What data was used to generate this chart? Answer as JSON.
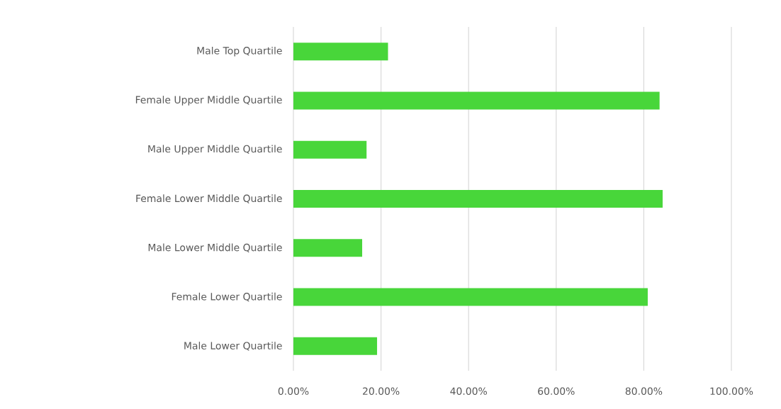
{
  "chart_data": {
    "type": "bar",
    "orientation": "horizontal",
    "categories": [
      "Male Top Quartile",
      "Female Upper Middle Quartile",
      "Male Upper Middle Quartile",
      "Female Lower Middle Quartile",
      "Male Lower Middle Quartile",
      "Female Lower Quartile",
      "Male Lower Quartile"
    ],
    "values": [
      21.6,
      83.6,
      16.7,
      84.3,
      15.7,
      80.9,
      19.1
    ],
    "color": "#48d63a",
    "xlim": [
      0,
      100
    ],
    "xticks": [
      {
        "value": 0,
        "label": "0.00%"
      },
      {
        "value": 20,
        "label": "20.00%"
      },
      {
        "value": 40,
        "label": "40.00%"
      },
      {
        "value": 60,
        "label": "60.00%"
      },
      {
        "value": 80,
        "label": "80.00%"
      },
      {
        "value": 100,
        "label": "100.00%"
      }
    ],
    "grid": "x"
  }
}
